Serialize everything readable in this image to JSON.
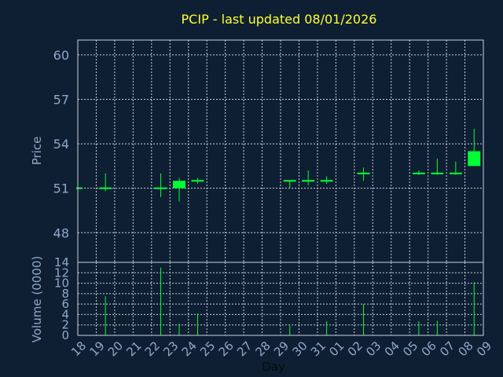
{
  "chart_data": {
    "type": "candlestick",
    "title": "PCIP - last updated 08/01/2026",
    "ylabel": "Price",
    "volume_label": "Volume (0000)",
    "xlabel": "Day",
    "price_ylim": [
      46,
      61
    ],
    "price_ticks": [
      "60",
      "57",
      "54",
      "51",
      "48"
    ],
    "price_tick_values": [
      60,
      57,
      54,
      51,
      48
    ],
    "volume_ylim": [
      0,
      14
    ],
    "volume_ticks": [
      "14",
      "12",
      "10",
      "8",
      "6",
      "4",
      "2",
      "0"
    ],
    "volume_tick_values": [
      14,
      12,
      10,
      8,
      6,
      4,
      2,
      0
    ],
    "x_ticks": [
      "18",
      "19",
      "20",
      "21",
      "22",
      "23",
      "24",
      "25",
      "26",
      "27",
      "28",
      "29",
      "30",
      "31",
      "01",
      "02",
      "03",
      "04",
      "05",
      "06",
      "07",
      "08",
      "09"
    ],
    "grid": true,
    "candles": [
      {
        "day": "18",
        "open": 51.0,
        "high": 51.0,
        "low": 51.0,
        "close": 51.0,
        "volume": 0
      },
      {
        "day": "19",
        "open": 51.0,
        "high": 52.0,
        "low": 50.8,
        "close": 51.0,
        "volume": 7.5
      },
      {
        "day": "22",
        "open": 51.0,
        "high": 52.0,
        "low": 50.4,
        "close": 51.0,
        "volume": 13
      },
      {
        "day": "23",
        "open": 51.0,
        "high": 51.7,
        "low": 50.1,
        "close": 51.5,
        "volume": 2.2
      },
      {
        "day": "24",
        "open": 51.4,
        "high": 51.7,
        "low": 51.3,
        "close": 51.5,
        "volume": 4.2
      },
      {
        "day": "29",
        "open": 51.5,
        "high": 51.5,
        "low": 51.0,
        "close": 51.4,
        "volume": 1.8
      },
      {
        "day": "30",
        "open": 51.4,
        "high": 52.2,
        "low": 51.2,
        "close": 51.5,
        "volume": 0
      },
      {
        "day": "31",
        "open": 51.4,
        "high": 51.8,
        "low": 51.3,
        "close": 51.5,
        "volume": 2.7
      },
      {
        "day": "02",
        "open": 51.9,
        "high": 52.4,
        "low": 51.5,
        "close": 52.0,
        "volume": 6.0
      },
      {
        "day": "05",
        "open": 51.9,
        "high": 52.2,
        "low": 51.9,
        "close": 52.0,
        "volume": 2.7
      },
      {
        "day": "06",
        "open": 51.9,
        "high": 53.0,
        "low": 51.9,
        "close": 52.0,
        "volume": 2.8
      },
      {
        "day": "07",
        "open": 51.9,
        "high": 52.8,
        "low": 51.9,
        "close": 52.0,
        "volume": 0
      },
      {
        "day": "08",
        "open": 52.5,
        "high": 55.0,
        "low": 52.5,
        "close": 53.5,
        "volume": 10.2
      }
    ],
    "colors": {
      "background": "#0f1f33",
      "candle": "#00ff33",
      "title": "#ffff33",
      "axis_text": "#8fa8c8",
      "grid": "#c8d0dc"
    }
  }
}
